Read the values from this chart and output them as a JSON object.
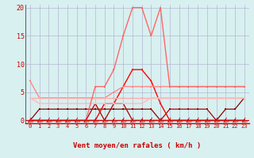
{
  "x": [
    0,
    1,
    2,
    3,
    4,
    5,
    6,
    7,
    8,
    9,
    10,
    11,
    12,
    13,
    14,
    15,
    16,
    17,
    18,
    19,
    20,
    21,
    22,
    23
  ],
  "series": [
    {
      "label": "line_dark1",
      "color": "#cc0000",
      "lw": 0.9,
      "marker": true,
      "values": [
        0,
        0,
        0,
        0,
        0,
        0,
        0,
        0,
        0,
        0,
        0,
        0,
        0,
        0,
        0,
        0,
        0,
        0,
        0,
        0,
        0,
        0,
        0,
        0
      ]
    },
    {
      "label": "line_dark2",
      "color": "#880000",
      "lw": 0.9,
      "marker": true,
      "values": [
        0,
        2,
        2,
        2,
        2,
        2,
        2,
        2,
        2,
        2,
        2,
        2,
        2,
        2,
        0,
        0,
        0,
        0,
        0,
        0,
        0,
        2,
        2,
        4
      ]
    },
    {
      "label": "line_dark3",
      "color": "#aa0000",
      "lw": 0.9,
      "marker": true,
      "values": [
        0,
        0,
        0,
        0,
        0,
        0,
        0,
        3,
        0,
        3,
        3,
        0,
        0,
        0,
        0,
        2,
        2,
        2,
        2,
        2,
        0,
        0,
        0,
        0
      ]
    },
    {
      "label": "line_medium_dark",
      "color": "#ff0000",
      "lw": 1.0,
      "marker": true,
      "values": [
        0,
        0,
        0,
        0,
        0,
        0,
        0,
        0,
        3,
        3,
        6,
        9,
        9,
        7,
        3,
        0,
        0,
        0,
        0,
        0,
        0,
        0,
        0,
        0
      ]
    },
    {
      "label": "line_light1",
      "color": "#ff8888",
      "lw": 1.0,
      "marker": true,
      "values": [
        7,
        4,
        4,
        4,
        4,
        4,
        4,
        4,
        4,
        5,
        6,
        6,
        6,
        6,
        6,
        6,
        6,
        6,
        6,
        6,
        6,
        6,
        6,
        6
      ]
    },
    {
      "label": "line_light2",
      "color": "#ffaaaa",
      "lw": 1.0,
      "marker": true,
      "values": [
        4,
        4,
        4,
        4,
        4,
        4,
        4,
        4,
        4,
        4,
        4,
        4,
        4,
        4,
        4,
        4,
        4,
        4,
        4,
        4,
        4,
        4,
        4,
        4
      ]
    },
    {
      "label": "line_light3",
      "color": "#ffbbbb",
      "lw": 1.0,
      "marker": true,
      "values": [
        4,
        3,
        3,
        3,
        3,
        3,
        3,
        3,
        3,
        3,
        3,
        3,
        3,
        4,
        4,
        4,
        4,
        4,
        4,
        4,
        4,
        4,
        4,
        4
      ]
    },
    {
      "label": "line_pink_big",
      "color": "#ff6666",
      "lw": 1.0,
      "marker": true,
      "values": [
        0,
        0,
        0,
        0,
        0,
        0,
        0,
        6,
        6,
        9,
        15,
        20,
        20,
        15,
        20,
        6,
        6,
        6,
        6,
        6,
        6,
        6,
        6,
        6
      ]
    }
  ],
  "xlim": [
    -0.5,
    23.5
  ],
  "ylim": [
    -0.5,
    20.5
  ],
  "xlabel": "Vent moyen/en rafales ( km/h )",
  "yticks": [
    0,
    5,
    10,
    15,
    20
  ],
  "xticks": [
    0,
    1,
    2,
    3,
    4,
    5,
    6,
    7,
    8,
    9,
    10,
    11,
    12,
    13,
    14,
    15,
    16,
    17,
    18,
    19,
    20,
    21,
    22,
    23
  ],
  "bg_color": "#d8f0f0",
  "grid_color": "#aaaacc",
  "xlabel_color": "#cc0000",
  "tick_color": "#cc0000",
  "ytick_fontsize": 6,
  "xtick_fontsize": 5,
  "xlabel_fontsize": 6.5
}
